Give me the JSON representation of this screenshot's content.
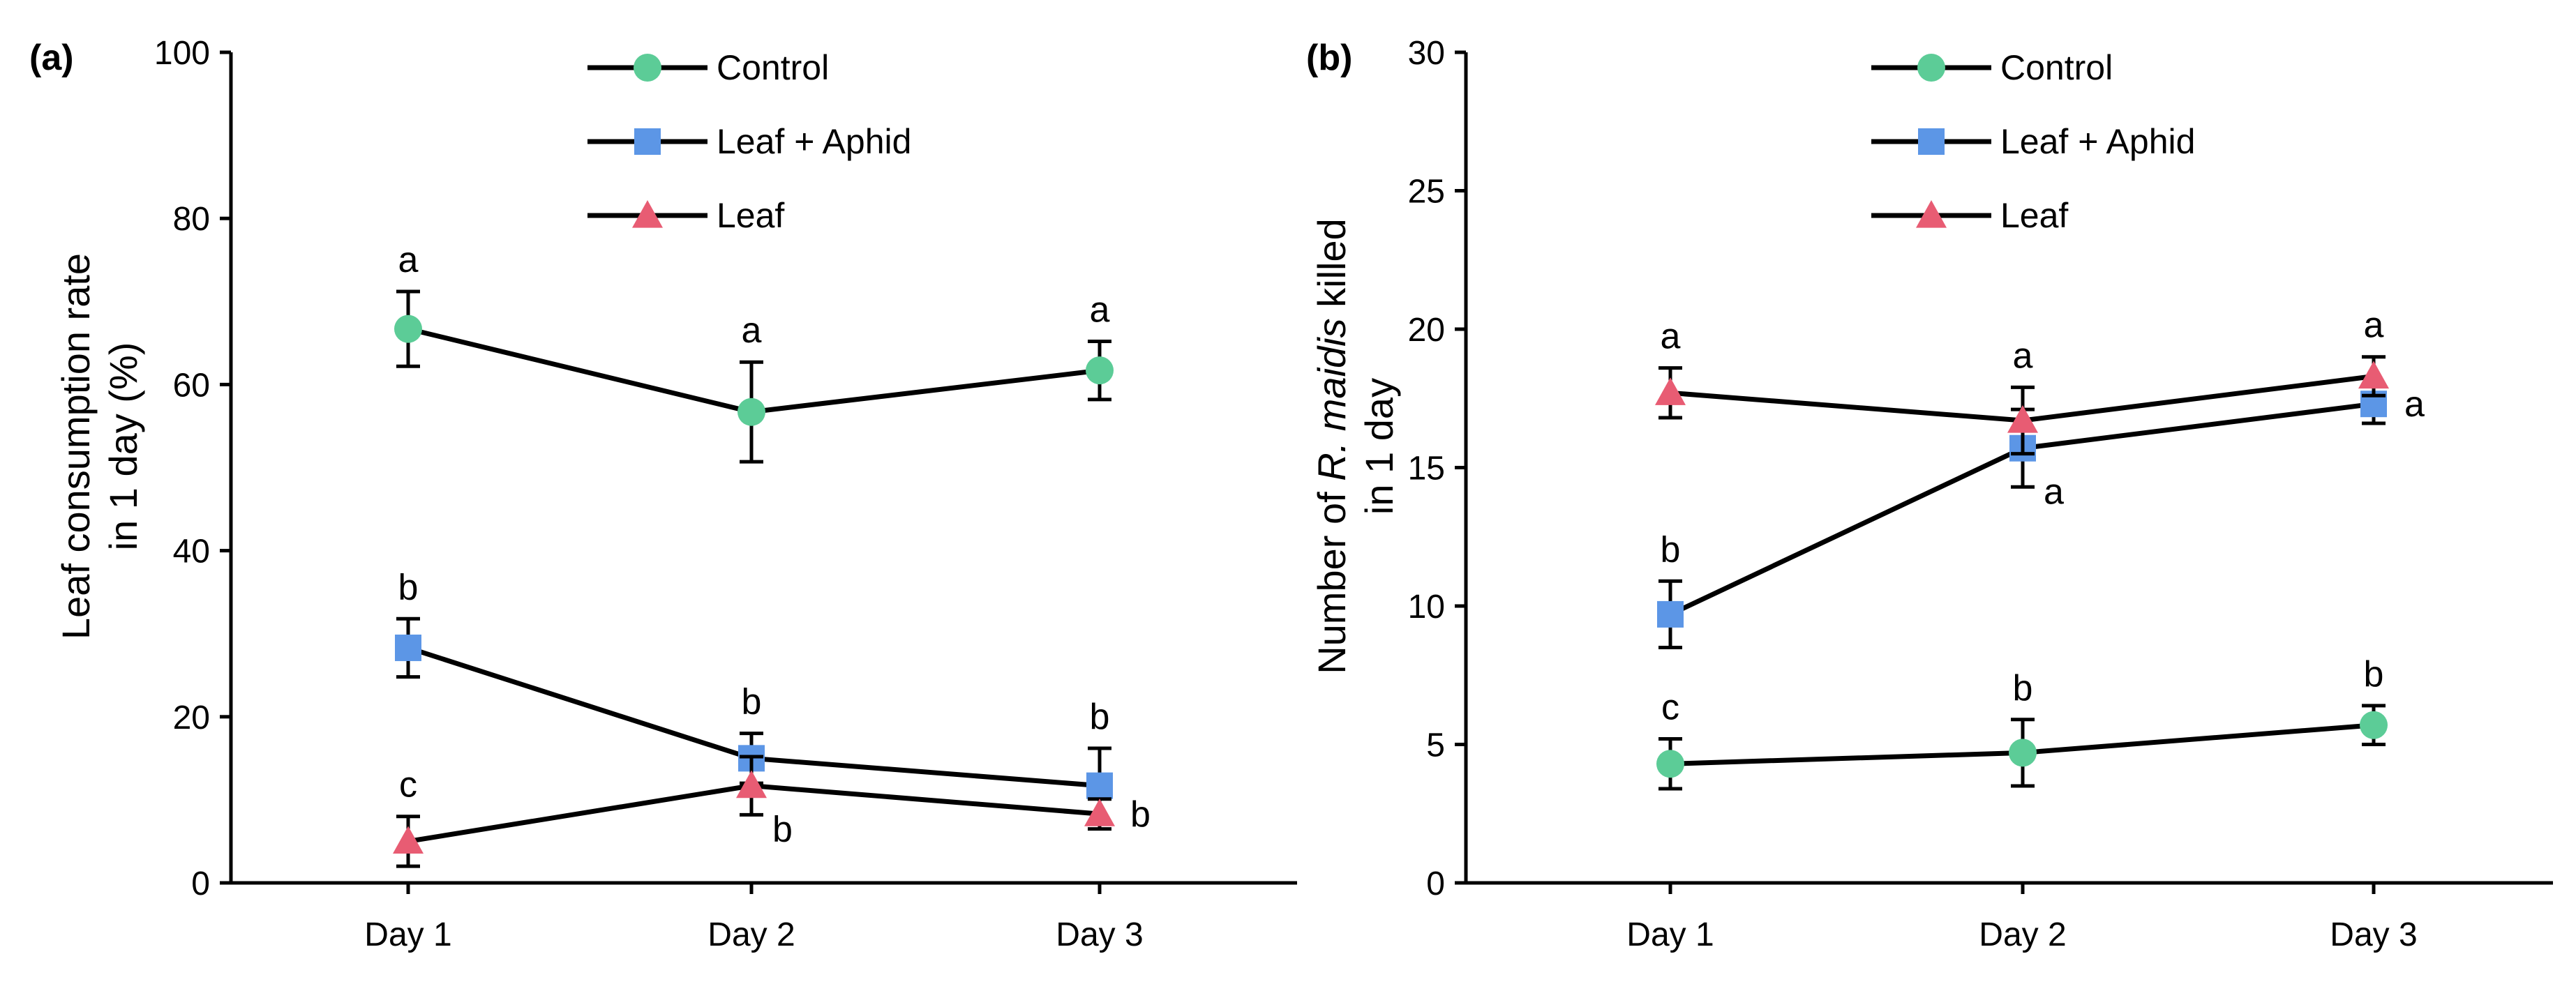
{
  "chart_data": [
    {
      "type": "line",
      "panel_label": "(a)",
      "ylabel_line1": "Leaf consumption rate",
      "ylabel_line2": "in 1 day (%)",
      "xlabel": "",
      "categories": [
        "Day 1",
        "Day 2",
        "Day 3"
      ],
      "ylim": [
        0,
        100
      ],
      "yticks": [
        0,
        20,
        40,
        60,
        80,
        100
      ],
      "grid": false,
      "legend_position": "top-center",
      "series": [
        {
          "name": "Control",
          "marker": "circle",
          "color": "#5ccc97",
          "values": [
            66.7,
            56.7,
            61.7
          ],
          "errors": [
            4.5,
            6.0,
            3.5
          ],
          "letters": [
            "a",
            "a",
            "a"
          ],
          "letter_pos": [
            "above",
            "above",
            "above"
          ]
        },
        {
          "name": "Leaf + Aphid",
          "marker": "square",
          "color": "#5c96e6",
          "values": [
            28.3,
            15.0,
            11.7
          ],
          "errors": [
            3.5,
            3.0,
            4.5
          ],
          "letters": [
            "b",
            "b",
            "b"
          ],
          "letter_pos": [
            "above",
            "above",
            "above"
          ]
        },
        {
          "name": "Leaf",
          "marker": "triangle",
          "color": "#e85c73",
          "values": [
            5.0,
            11.7,
            8.3
          ],
          "errors": [
            3.0,
            3.5,
            1.8
          ],
          "letters": [
            "c",
            "b",
            "b"
          ],
          "letter_pos": [
            "above",
            "below-right",
            "right"
          ]
        }
      ]
    },
    {
      "type": "line",
      "panel_label": "(b)",
      "ylabel_line1_pre": "Number of ",
      "ylabel_line1_italic": "R. maidis",
      "ylabel_line1_post": " killed",
      "ylabel_line2": "in 1 day",
      "xlabel": "",
      "categories": [
        "Day 1",
        "Day 2",
        "Day 3"
      ],
      "ylim": [
        0,
        30
      ],
      "yticks": [
        0,
        5,
        10,
        15,
        20,
        25,
        30
      ],
      "grid": false,
      "legend_position": "top-center",
      "series": [
        {
          "name": "Control",
          "marker": "circle",
          "color": "#5ccc97",
          "values": [
            4.3,
            4.7,
            5.7
          ],
          "errors": [
            0.9,
            1.2,
            0.7
          ],
          "letters": [
            "c",
            "b",
            "b"
          ],
          "letter_pos": [
            "above",
            "above",
            "above"
          ]
        },
        {
          "name": "Leaf + Aphid",
          "marker": "square",
          "color": "#5c96e6",
          "values": [
            9.7,
            15.7,
            17.3
          ],
          "errors": [
            1.2,
            1.4,
            0.7
          ],
          "letters": [
            "b",
            "a",
            "a"
          ],
          "letter_pos": [
            "above",
            "below-right",
            "right"
          ]
        },
        {
          "name": "Leaf",
          "marker": "triangle",
          "color": "#e85c73",
          "values": [
            17.7,
            16.7,
            18.3
          ],
          "errors": [
            0.9,
            1.2,
            0.7
          ],
          "letters": [
            "a",
            "a",
            "a"
          ],
          "letter_pos": [
            "above",
            "above",
            "above"
          ]
        }
      ]
    }
  ]
}
